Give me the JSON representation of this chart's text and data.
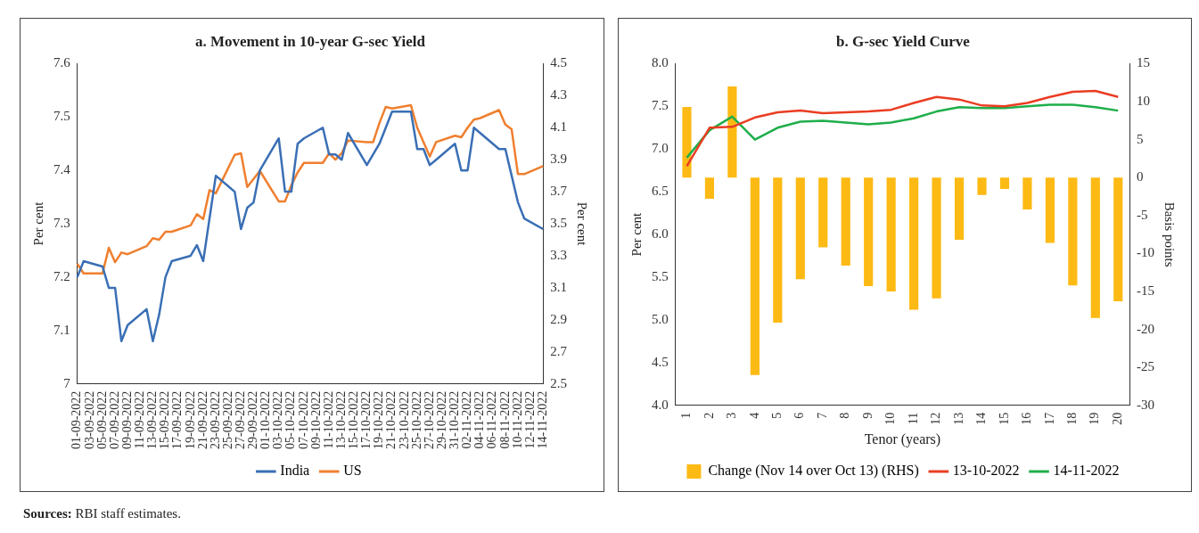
{
  "chart_data": [
    {
      "type": "line",
      "title": "a. Movement in 10-year G-sec Yield",
      "ylabel": "Per cent",
      "y2label": "Per cent",
      "categories": [
        "01-09-2022",
        null,
        "03-09-2022",
        null,
        "05-09-2022",
        null,
        "07-09-2022",
        null,
        "09-09-2022",
        null,
        "11-09-2022",
        null,
        "13-09-2022",
        null,
        "15-09-2022",
        null,
        "17-09-2022",
        null,
        "19-09-2022",
        null,
        "21-09-2022",
        null,
        "23-09-2022",
        null,
        "25-09-2022",
        null,
        "27-09-2022",
        null,
        "29-09-2022",
        null,
        "01-10-2022",
        null,
        "03-10-2022",
        null,
        "05-10-2022",
        null,
        "07-10-2022",
        null,
        "09-10-2022",
        null,
        "11-10-2022",
        null,
        "13-10-2022",
        null,
        "15-10-2022",
        null,
        "17-10-2022",
        null,
        "19-10-2022",
        null,
        "21-10-2022",
        null,
        "23-10-2022",
        null,
        "25-10-2022",
        null,
        "27-10-2022",
        null,
        "29-10-2022",
        null,
        "31-10-2022",
        null,
        "02-11-2022",
        null,
        "04-11-2022",
        null,
        "06-11-2022",
        null,
        "08-11-2022",
        null,
        "10-11-2022",
        null,
        "12-11-2022",
        null,
        "14-11-2022"
      ],
      "series": [
        {
          "name": "India",
          "color": "#3a6fb5",
          "values": [
            7.2,
            7.23,
            null,
            null,
            7.22,
            7.18,
            7.18,
            7.08,
            7.11,
            null,
            null,
            7.14,
            7.08,
            7.13,
            7.2,
            7.23,
            null,
            null,
            7.24,
            7.26,
            7.23,
            7.31,
            7.39,
            null,
            null,
            7.36,
            7.29,
            7.33,
            7.34,
            7.4,
            null,
            null,
            7.46,
            7.36,
            7.36,
            7.45,
            7.46,
            null,
            null,
            7.48,
            7.43,
            7.43,
            7.42,
            7.47,
            null,
            null,
            7.41,
            7.43,
            7.45,
            7.48,
            7.51,
            null,
            null,
            7.51,
            7.44,
            7.44,
            7.41,
            7.42,
            null,
            null,
            7.45,
            7.4,
            7.4,
            7.48,
            7.47,
            null,
            null,
            7.44,
            7.44,
            7.39,
            7.34,
            7.31,
            null,
            null,
            7.29
          ]
        },
        {
          "name": "US",
          "color": "#ef7f2f",
          "axis": "y2",
          "values": [
            3.25,
            3.19,
            null,
            null,
            3.19,
            3.35,
            3.26,
            3.32,
            3.31,
            null,
            null,
            3.36,
            3.41,
            3.4,
            3.45,
            3.45,
            null,
            null,
            3.49,
            3.56,
            3.53,
            3.71,
            3.69,
            null,
            null,
            3.93,
            3.94,
            3.73,
            3.78,
            3.83,
            null,
            null,
            3.64,
            3.64,
            3.74,
            3.82,
            3.88,
            null,
            null,
            3.88,
            3.94,
            3.9,
            3.94,
            4.02,
            null,
            null,
            4.01,
            4.01,
            4.13,
            4.23,
            4.22,
            null,
            null,
            4.24,
            4.1,
            4.01,
            3.92,
            4.01,
            null,
            null,
            4.05,
            4.04,
            4.1,
            4.15,
            4.16,
            null,
            null,
            4.21,
            4.12,
            4.09,
            3.81,
            3.81,
            null,
            null,
            3.86
          ]
        }
      ],
      "ylim": [
        7,
        7.6
      ],
      "yticks": [
        7,
        7.1,
        7.2,
        7.3,
        7.4,
        7.5,
        7.6
      ],
      "y2lim": [
        2.5,
        4.5
      ],
      "y2ticks": [
        2.5,
        2.7,
        2.9,
        3.1,
        3.3,
        3.5,
        3.7,
        3.9,
        4.1,
        4.3,
        4.5
      ],
      "marker": "none",
      "grid": false,
      "legend": "bottom",
      "annotations": [
        "Sources: RBI staff estimates."
      ]
    },
    {
      "type": "bar",
      "title": "b. G-sec Yield Curve",
      "xlabel": "Tenor (years)",
      "ylabel": "Per cent",
      "y2label": "Basis points",
      "categories": [
        "1",
        "2",
        "3",
        "4",
        "5",
        "6",
        "7",
        "8",
        "9",
        "10",
        "11",
        "12",
        "13",
        "14",
        "15",
        "16",
        "17",
        "18",
        "19",
        "20"
      ],
      "series": [
        {
          "name": "Change (Nov 14 over Oct 13) (RHS)",
          "type": "bar",
          "axis": "y2",
          "color": "#fdba14",
          "values": [
            9.3,
            -2.8,
            12,
            -26,
            -19.1,
            -13.4,
            -9.2,
            -11.6,
            -14.3,
            -15,
            -17.4,
            -15.9,
            -8.2,
            -2.3,
            -1.5,
            -4.2,
            -8.6,
            -14.2,
            -18.5,
            -16.3
          ]
        },
        {
          "name": "13-10-2022",
          "type": "line",
          "color": "#ea3d22",
          "values": [
            6.8,
            7.25,
            7.26,
            7.37,
            7.43,
            7.45,
            7.42,
            7.43,
            7.44,
            7.46,
            7.54,
            7.61,
            7.58,
            7.51,
            7.5,
            7.54,
            7.61,
            7.67,
            7.68,
            7.61
          ]
        },
        {
          "name": "14-11-2022",
          "type": "line",
          "color": "#1fae4a",
          "values": [
            6.9,
            7.22,
            7.38,
            7.11,
            7.25,
            7.32,
            7.33,
            7.31,
            7.29,
            7.31,
            7.36,
            7.44,
            7.49,
            7.48,
            7.48,
            7.5,
            7.52,
            7.52,
            7.49,
            7.45
          ]
        }
      ],
      "ylim": [
        4,
        8
      ],
      "yticks": [
        {
          "value": 4,
          "label": "4.0"
        },
        {
          "value": 4.5,
          "label": "4.5"
        },
        {
          "value": 5,
          "label": "5.0"
        },
        {
          "value": 5.5,
          "label": "5.5"
        },
        {
          "value": 6,
          "label": "6.0"
        },
        {
          "value": 6.5,
          "label": "6.5"
        },
        {
          "value": 7,
          "label": "7.0"
        },
        {
          "value": 7.5,
          "label": "7.5"
        },
        {
          "value": 8,
          "label": "8.0"
        }
      ],
      "y2lim": [
        -30,
        15
      ],
      "y2ticks": [
        -30,
        -25,
        -20,
        -15,
        -10,
        -5,
        0,
        5,
        10,
        15
      ],
      "marker": "none",
      "grid": false,
      "legend": "bottom"
    }
  ]
}
